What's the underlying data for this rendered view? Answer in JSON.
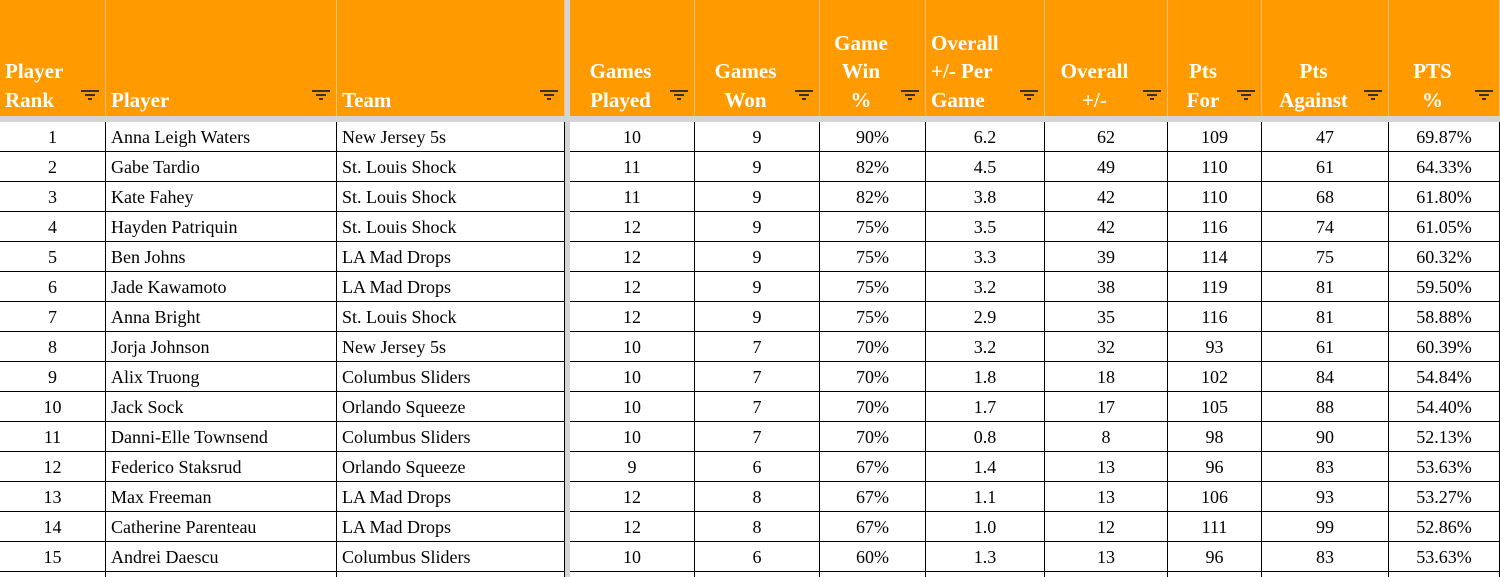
{
  "header": {
    "columns": [
      {
        "lines": [
          "Player",
          "Rank"
        ],
        "align": "left"
      },
      {
        "lines": [
          "Player"
        ],
        "align": "left"
      },
      {
        "lines": [
          "Team"
        ],
        "align": "left"
      },
      {
        "lines": [
          "Games",
          "Played"
        ],
        "align": "center"
      },
      {
        "lines": [
          "Games",
          "Won"
        ],
        "align": "center"
      },
      {
        "lines": [
          "Game",
          "Win",
          "%"
        ],
        "align": "center"
      },
      {
        "lines": [
          "Overall",
          "+/- Per",
          "Game"
        ],
        "align": "left"
      },
      {
        "lines": [
          "Overall",
          "+/-"
        ],
        "align": "center"
      },
      {
        "lines": [
          "Pts",
          "For"
        ],
        "align": "center"
      },
      {
        "lines": [
          "Pts",
          "Against"
        ],
        "align": "center"
      },
      {
        "lines": [
          "PTS",
          "%"
        ],
        "align": "center"
      }
    ]
  },
  "table": {
    "rows": [
      [
        "1",
        "Anna Leigh Waters",
        "New Jersey 5s",
        "10",
        "9",
        "90%",
        "6.2",
        "62",
        "109",
        "47",
        "69.87%"
      ],
      [
        "2",
        "Gabe Tardio",
        "St. Louis Shock",
        "11",
        "9",
        "82%",
        "4.5",
        "49",
        "110",
        "61",
        "64.33%"
      ],
      [
        "3",
        "Kate Fahey",
        "St. Louis Shock",
        "11",
        "9",
        "82%",
        "3.8",
        "42",
        "110",
        "68",
        "61.80%"
      ],
      [
        "4",
        "Hayden Patriquin",
        "St. Louis Shock",
        "12",
        "9",
        "75%",
        "3.5",
        "42",
        "116",
        "74",
        "61.05%"
      ],
      [
        "5",
        "Ben Johns",
        "LA Mad Drops",
        "12",
        "9",
        "75%",
        "3.3",
        "39",
        "114",
        "75",
        "60.32%"
      ],
      [
        "6",
        "Jade Kawamoto",
        "LA Mad Drops",
        "12",
        "9",
        "75%",
        "3.2",
        "38",
        "119",
        "81",
        "59.50%"
      ],
      [
        "7",
        "Anna Bright",
        "St. Louis Shock",
        "12",
        "9",
        "75%",
        "2.9",
        "35",
        "116",
        "81",
        "58.88%"
      ],
      [
        "8",
        "Jorja Johnson",
        "New Jersey 5s",
        "10",
        "7",
        "70%",
        "3.2",
        "32",
        "93",
        "61",
        "60.39%"
      ],
      [
        "9",
        "Alix Truong",
        "Columbus Sliders",
        "10",
        "7",
        "70%",
        "1.8",
        "18",
        "102",
        "84",
        "54.84%"
      ],
      [
        "10",
        "Jack Sock",
        "Orlando Squeeze",
        "10",
        "7",
        "70%",
        "1.7",
        "17",
        "105",
        "88",
        "54.40%"
      ],
      [
        "11",
        "Danni-Elle Townsend",
        "Columbus Sliders",
        "10",
        "7",
        "70%",
        "0.8",
        "8",
        "98",
        "90",
        "52.13%"
      ],
      [
        "12",
        "Federico Staksrud",
        "Orlando Squeeze",
        "9",
        "6",
        "67%",
        "1.4",
        "13",
        "96",
        "83",
        "53.63%"
      ],
      [
        "13",
        "Max Freeman",
        "LA Mad Drops",
        "12",
        "8",
        "67%",
        "1.1",
        "13",
        "106",
        "93",
        "53.27%"
      ],
      [
        "14",
        "Catherine Parenteau",
        "LA Mad Drops",
        "12",
        "8",
        "67%",
        "1.0",
        "12",
        "111",
        "99",
        "52.86%"
      ],
      [
        "15",
        "Andrei Daescu",
        "Columbus Sliders",
        "10",
        "6",
        "60%",
        "1.3",
        "13",
        "96",
        "83",
        "53.63%"
      ]
    ]
  }
}
